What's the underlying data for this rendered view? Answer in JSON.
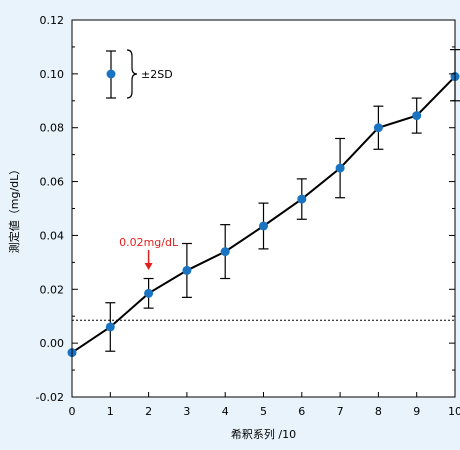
{
  "chart_data": {
    "type": "line",
    "title": "",
    "xlabel": "希釈系列 /10",
    "ylabel": "測定値（mg/dL）",
    "xlim": [
      0,
      10
    ],
    "ylim": [
      -0.02,
      0.12
    ],
    "x_ticks": [
      "0",
      "1",
      "2",
      "3",
      "4",
      "5",
      "6",
      "7",
      "8",
      "9",
      "10"
    ],
    "y_ticks": [
      "-0.02",
      "0.00",
      "0.02",
      "0.04",
      "0.06",
      "0.08",
      "0.10",
      "0.12"
    ],
    "grid": false,
    "series": [
      {
        "x": [
          0,
          1,
          2,
          3,
          4,
          5,
          6,
          7,
          8,
          9,
          10
        ],
        "y": [
          -0.0035,
          0.006,
          0.0185,
          0.027,
          0.034,
          0.0435,
          0.0535,
          0.065,
          0.08,
          0.0845,
          0.099
        ],
        "err_upper": [
          null,
          0.015,
          0.024,
          0.037,
          0.044,
          0.052,
          0.061,
          0.076,
          0.088,
          0.091,
          0.109
        ],
        "err_lower": [
          null,
          -0.003,
          0.013,
          0.017,
          0.024,
          0.035,
          0.046,
          0.054,
          0.072,
          0.078,
          0.09
        ]
      }
    ],
    "reference_line": {
      "y": 0.0085,
      "style": "dotted"
    },
    "legend": {
      "label": "±2SD",
      "position": "top-left"
    },
    "annotation": {
      "text": "0.02mg/dL",
      "x": 2,
      "color": "#e0201c"
    },
    "colors": {
      "marker": "#1b74c2",
      "line": "#000000",
      "annotation": "#e0201c",
      "plot_background": "#ffffff",
      "page_background": "#e8f3fb"
    }
  }
}
